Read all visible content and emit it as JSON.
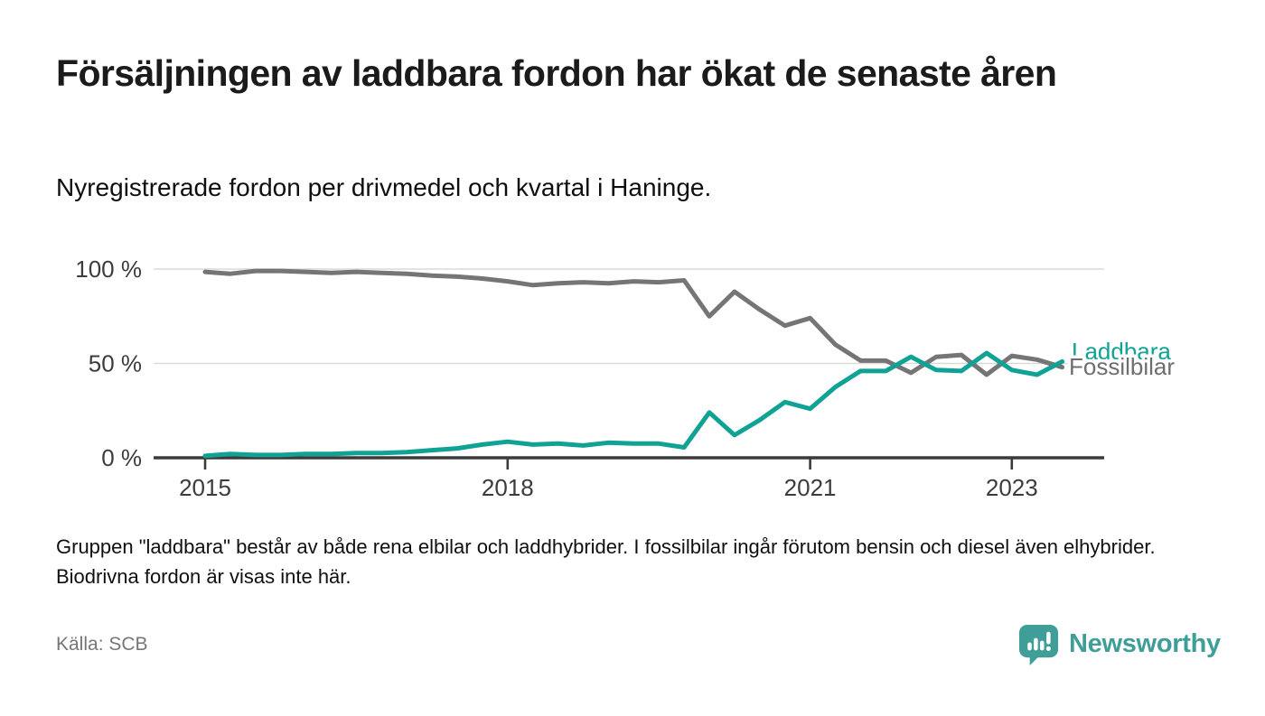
{
  "header": {
    "title": "Försäljningen av laddbara fordon har ökat de senaste åren",
    "subtitle": "Nyregistrerade fordon per drivmedel och kvartal i Haninge."
  },
  "chart_data": {
    "type": "line",
    "title": "Nyregistrerade fordon per drivmedel och kvartal i Haninge",
    "unit": "%",
    "ylim": [
      0,
      100
    ],
    "grid": "horizontal",
    "legend_position": "end-of-line-labels",
    "y_tick_values": [
      100,
      50,
      0
    ],
    "y_tick_labels": [
      "100 %",
      "50 %",
      "0 %"
    ],
    "x_tick_labels": [
      "2015",
      "2018",
      "2021",
      "2023"
    ],
    "x": [
      "2015 Q1",
      "2015 Q2",
      "2015 Q3",
      "2015 Q4",
      "2016 Q1",
      "2016 Q2",
      "2016 Q3",
      "2016 Q4",
      "2017 Q1",
      "2017 Q2",
      "2017 Q3",
      "2017 Q4",
      "2018 Q1",
      "2018 Q2",
      "2018 Q3",
      "2018 Q4",
      "2019 Q1",
      "2019 Q2",
      "2019 Q3",
      "2019 Q4",
      "2020 Q1",
      "2020 Q2",
      "2020 Q3",
      "2020 Q4",
      "2021 Q1",
      "2021 Q2",
      "2021 Q3",
      "2021 Q4",
      "2022 Q1",
      "2022 Q2",
      "2022 Q3",
      "2022 Q4",
      "2023 Q1",
      "2023 Q2",
      "2023 Q3"
    ],
    "series": [
      {
        "name": "Fossilbilar",
        "color": "#757575",
        "values": [
          98.5,
          97.5,
          99,
          99,
          98.5,
          98,
          98.5,
          98,
          97.5,
          96.5,
          96,
          95,
          93.5,
          91.5,
          92.5,
          93,
          92.5,
          93.5,
          93,
          94,
          75,
          88,
          78.5,
          70,
          74,
          60,
          51.5,
          51.5,
          45,
          53.5,
          54.5,
          44,
          54,
          52,
          48
        ]
      },
      {
        "name": "Laddbara",
        "color": "#10a294",
        "values": [
          1,
          2,
          1.5,
          1.5,
          2,
          2,
          2.5,
          2.5,
          3,
          4,
          5,
          7,
          8.5,
          7,
          7.5,
          6.5,
          8,
          7.5,
          7.5,
          5.5,
          24,
          12,
          20,
          29.5,
          26,
          37.5,
          46,
          46,
          53.5,
          46.5,
          46,
          55.5,
          46.5,
          44,
          51
        ]
      }
    ]
  },
  "note": "Gruppen \"laddbara\" består av både rena elbilar och laddhybrider. I fossilbilar ingår förutom bensin och diesel även elhybrider. Biodrivna fordon är visas inte här.",
  "source": "Källa: SCB",
  "branding": {
    "wordmark": "Newsworthy",
    "color": "#3f9e97"
  }
}
